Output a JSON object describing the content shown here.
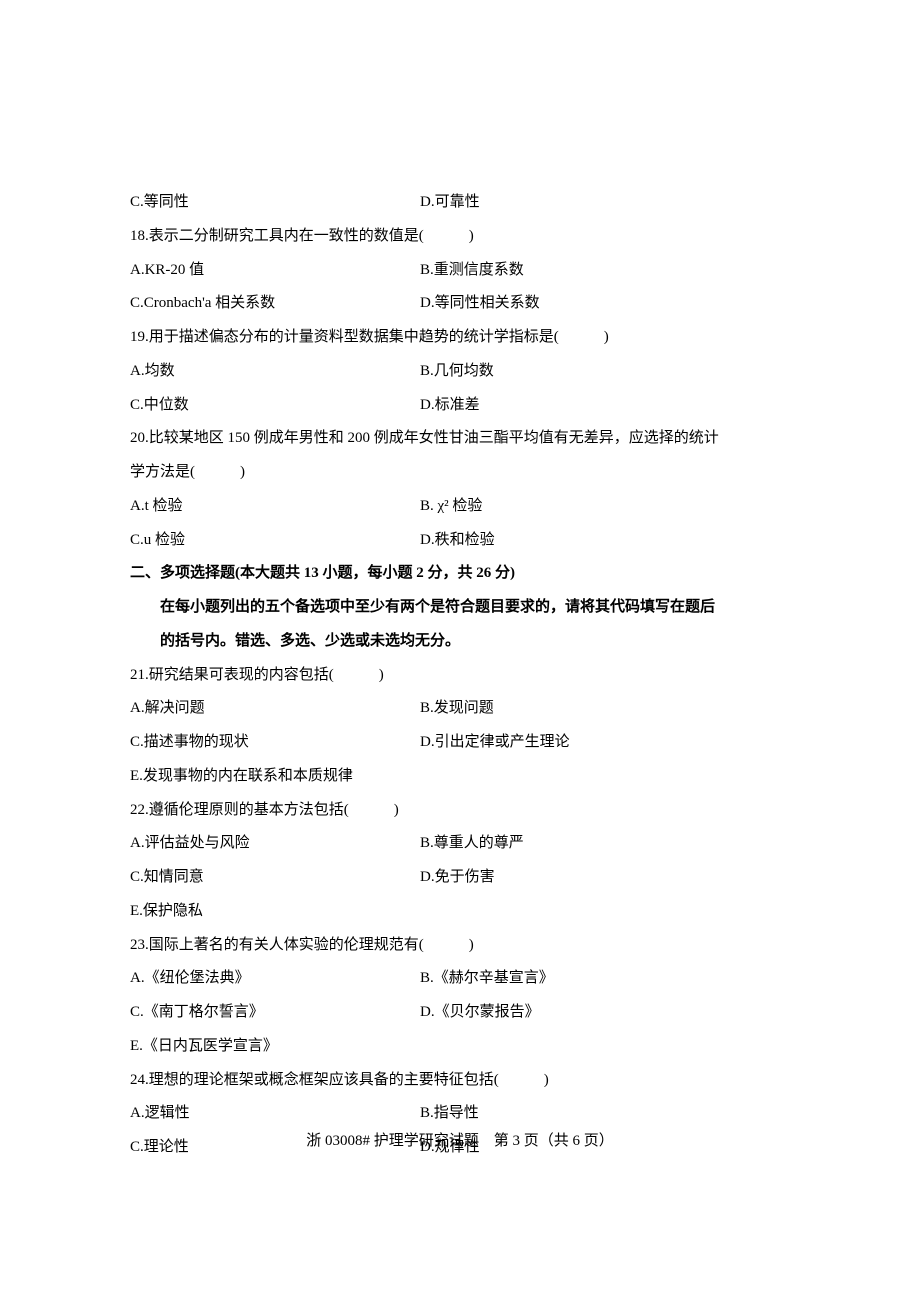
{
  "lines": [
    {
      "type": "two-col",
      "left": "C.等同性",
      "right": "D.可靠性"
    },
    {
      "type": "single",
      "text": "18.表示二分制研究工具内在一致性的数值是(　　　)"
    },
    {
      "type": "two-col",
      "left": "A.KR-20 值",
      "right": "B.重测信度系数"
    },
    {
      "type": "two-col",
      "left": "C.Cronbach'a 相关系数",
      "right": "D.等同性相关系数"
    },
    {
      "type": "single",
      "text": "19.用于描述偏态分布的计量资料型数据集中趋势的统计学指标是(　　　)"
    },
    {
      "type": "two-col",
      "left": "A.均数",
      "right": "B.几何均数"
    },
    {
      "type": "two-col",
      "left": "C.中位数",
      "right": "D.标准差"
    },
    {
      "type": "single",
      "text": "20.比较某地区 150 例成年男性和 200 例成年女性甘油三酯平均值有无差异，应选择的统计"
    },
    {
      "type": "single",
      "text": "学方法是(　　　)"
    },
    {
      "type": "two-col",
      "left": "A.t 检验",
      "right": "B. χ² 检验"
    },
    {
      "type": "two-col",
      "left": "C.u 检验",
      "right": "D.秩和检验"
    },
    {
      "type": "section-title",
      "text": "二、多项选择题(本大题共 13 小题，每小题 2 分，共 26 分)"
    },
    {
      "type": "section-sub",
      "text": "在每小题列出的五个备选项中至少有两个是符合题目要求的，请将其代码填写在题后"
    },
    {
      "type": "section-sub",
      "text": "的括号内。错选、多选、少选或未选均无分。"
    },
    {
      "type": "single",
      "text": "21.研究结果可表现的内容包括(　　　)"
    },
    {
      "type": "two-col",
      "left": "A.解决问题",
      "right": "B.发现问题"
    },
    {
      "type": "two-col",
      "left": "C.描述事物的现状",
      "right": "D.引出定律或产生理论"
    },
    {
      "type": "single",
      "text": "E.发现事物的内在联系和本质规律"
    },
    {
      "type": "single",
      "text": "22.遵循伦理原则的基本方法包括(　　　)"
    },
    {
      "type": "two-col",
      "left": "A.评估益处与风险",
      "right": "B.尊重人的尊严"
    },
    {
      "type": "two-col",
      "left": "C.知情同意",
      "right": "D.免于伤害"
    },
    {
      "type": "single",
      "text": "E.保护隐私"
    },
    {
      "type": "single",
      "text": "23.国际上著名的有关人体实验的伦理规范有(　　　)"
    },
    {
      "type": "two-col",
      "left": "A.《纽伦堡法典》",
      "right": "B.《赫尔辛基宣言》"
    },
    {
      "type": "two-col",
      "left": "C.《南丁格尔誓言》",
      "right": "D.《贝尔蒙报告》"
    },
    {
      "type": "single",
      "text": "E.《日内瓦医学宣言》"
    },
    {
      "type": "single",
      "text": "24.理想的理论框架或概念框架应该具备的主要特征包括(　　　)"
    },
    {
      "type": "two-col",
      "left": "A.逻辑性",
      "right": "B.指导性"
    },
    {
      "type": "two-col",
      "left": "C.理论性",
      "right": "D.规律性"
    }
  ],
  "footer": "浙 03008# 护理学研究试题　第 3 页（共 6 页）"
}
